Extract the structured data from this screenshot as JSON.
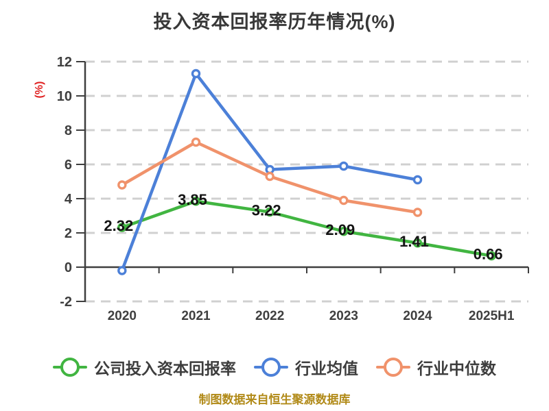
{
  "title": "投入资本回报率历年情况(%)",
  "footer": "制图数据来自恒生聚源数据库",
  "colors": {
    "title_text": "#383838",
    "axis_line": "#3e3e3e",
    "tick_text": "#3f3f3f",
    "gridline": "#d0d0d0",
    "data_label_text": "#141414",
    "y_axis_unit_label": "#e02222",
    "footer_text": "#b18a18"
  },
  "chart_data": {
    "type": "line",
    "title": "投入资本回报率历年情况(%)",
    "ylabel": "(%)",
    "xlabel": "",
    "categories": [
      "2020",
      "2021",
      "2022",
      "2023",
      "2024",
      "2025H1"
    ],
    "series": [
      {
        "name": "公司投入资本回报率",
        "color": "#41b541",
        "values": [
          2.32,
          3.85,
          3.22,
          2.09,
          1.41,
          0.66
        ],
        "show_labels": true,
        "labels": [
          "2.32",
          "3.85",
          "3.22",
          "2.09",
          "1.41",
          "0.66"
        ]
      },
      {
        "name": "行业均值",
        "color": "#4c80d8",
        "values": [
          -0.2,
          11.3,
          5.7,
          5.9,
          5.1,
          null
        ],
        "show_labels": false
      },
      {
        "name": "行业中位数",
        "color": "#f0926b",
        "values": [
          4.8,
          7.3,
          5.3,
          3.9,
          3.2,
          null
        ],
        "show_labels": false
      }
    ],
    "ylim": [
      -2,
      12
    ],
    "y_ticks": [
      -2,
      0,
      2,
      4,
      6,
      8,
      10,
      12
    ],
    "grid": "horizontal-dashed",
    "zero_axis_line": true,
    "legend_position": "bottom",
    "marker": "circle-white-fill"
  }
}
